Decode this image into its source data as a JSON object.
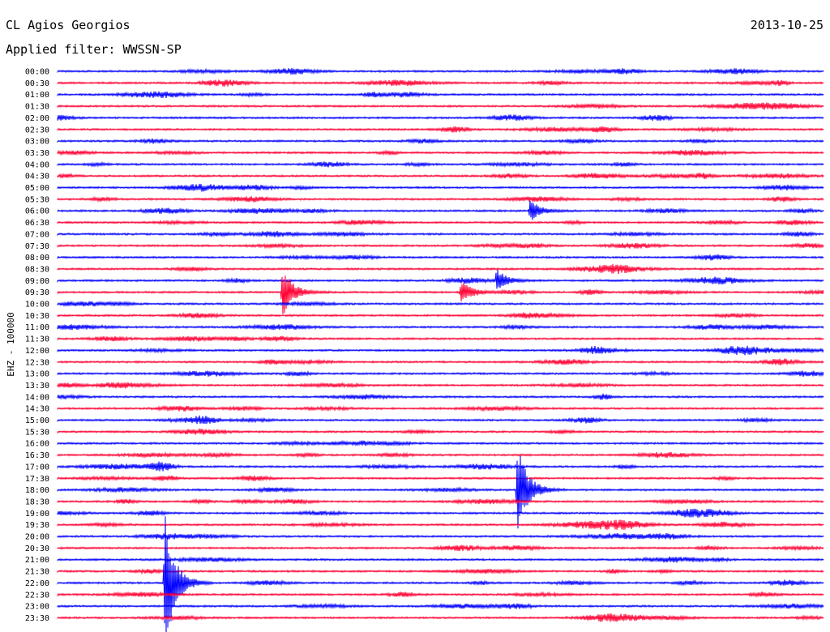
{
  "header": {
    "station": "CL Agios Georgios",
    "date": "2013-10-25",
    "filter": "Applied filter: WWSSN-SP"
  },
  "colors": {
    "even_trace": "#0000ff",
    "odd_trace": "#ff0033",
    "background": "#ffffff",
    "text": "#000000"
  },
  "chart_data": {
    "type": "line",
    "title": "CL Agios Georgios",
    "ylabel": "EHZ - 100000",
    "row_labels": [
      "00:00",
      "00:30",
      "01:00",
      "01:30",
      "02:00",
      "02:30",
      "03:00",
      "03:30",
      "04:00",
      "04:30",
      "05:00",
      "05:30",
      "06:00",
      "06:30",
      "07:00",
      "07:30",
      "08:00",
      "08:30",
      "09:00",
      "09:30",
      "10:00",
      "10:30",
      "11:00",
      "11:30",
      "12:00",
      "12:30",
      "13:00",
      "13:30",
      "14:00",
      "14:30",
      "15:00",
      "15:30",
      "16:00",
      "16:30",
      "17:00",
      "17:30",
      "18:00",
      "18:30",
      "19:00",
      "19:30",
      "20:00",
      "20:30",
      "21:00",
      "21:30",
      "22:00",
      "22:30",
      "23:00",
      "23:30"
    ],
    "row_colors": [
      "blue",
      "red"
    ],
    "events": [
      {
        "row": 19,
        "minute": 8.8,
        "amplitude": 2.2
      },
      {
        "row": 19,
        "minute": 15.8,
        "amplitude": 1.1
      },
      {
        "row": 18,
        "minute": 17.2,
        "amplitude": 1.0
      },
      {
        "row": 12,
        "minute": 18.5,
        "amplitude": 1.0
      },
      {
        "row": 36,
        "minute": 18.0,
        "amplitude": 4.2
      },
      {
        "row": 44,
        "minute": 4.2,
        "amplitude": 6.2
      }
    ]
  }
}
